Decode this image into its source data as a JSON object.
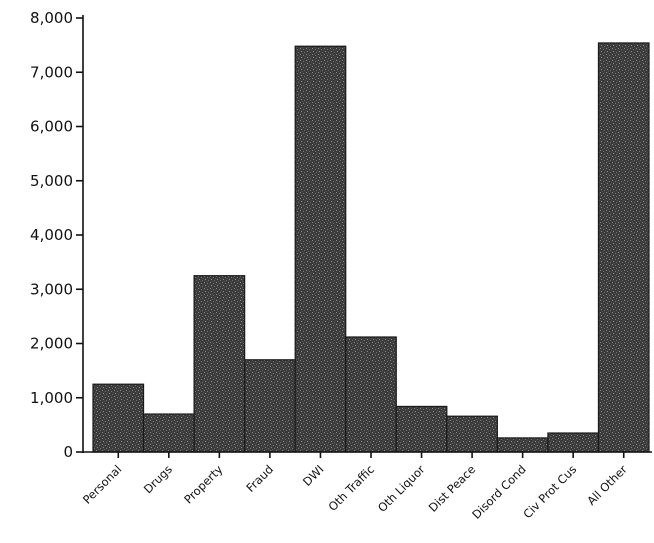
{
  "chart_data": {
    "type": "bar",
    "title": "",
    "xlabel": "",
    "ylabel": "",
    "categories": [
      "Personal",
      "Drugs",
      "Property",
      "Fraud",
      "DWI",
      "Oth Traffic",
      "Oth Liquor",
      "Dist Peace",
      "Disord Cond",
      "Civ Prot Cus",
      "All Other"
    ],
    "values": [
      1250,
      700,
      3250,
      1700,
      7480,
      2120,
      840,
      660,
      260,
      350,
      7540
    ],
    "ylim": [
      0,
      8000
    ],
    "yticks": [
      0,
      1000,
      2000,
      3000,
      4000,
      5000,
      6000,
      7000,
      8000
    ],
    "ytick_labels": [
      "0",
      "1,000",
      "2,000",
      "3,000",
      "4,000",
      "5,000",
      "6,000",
      "7,000",
      "8,000"
    ],
    "grid": false,
    "legend": "none",
    "bar_color": "#3a3a3a"
  }
}
